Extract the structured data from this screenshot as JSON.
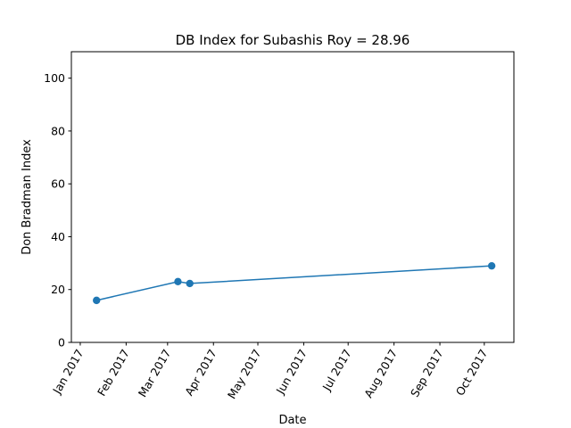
{
  "chart_data": {
    "type": "line",
    "title": "DB Index for Subashis Roy = 28.96",
    "xlabel": "Date",
    "ylabel": "Don Bradman Index",
    "ylim": [
      0,
      110
    ],
    "xlim": [
      "2016-12-26",
      "2017-10-21"
    ],
    "grid": false,
    "legend": "none",
    "x_ticks": [
      "2017-01-01",
      "2017-02-01",
      "2017-03-01",
      "2017-04-01",
      "2017-05-01",
      "2017-06-01",
      "2017-07-01",
      "2017-08-01",
      "2017-09-01",
      "2017-10-01"
    ],
    "x_tick_labels": [
      "Jan 2017",
      "Feb 2017",
      "Mar 2017",
      "Apr 2017",
      "May 2017",
      "Jun 2017",
      "Jul 2017",
      "Aug 2017",
      "Sep 2017",
      "Oct 2017"
    ],
    "y_ticks": [
      0,
      20,
      40,
      60,
      80,
      100
    ],
    "y_tick_labels": [
      "0",
      "20",
      "40",
      "60",
      "80",
      "100"
    ],
    "series": [
      {
        "color": "#1f77b4",
        "marker": "circle",
        "x": [
          "2017-01-12",
          "2017-03-08",
          "2017-03-16",
          "2017-10-06"
        ],
        "y": [
          15.9,
          23.0,
          22.3,
          28.96
        ]
      }
    ]
  }
}
